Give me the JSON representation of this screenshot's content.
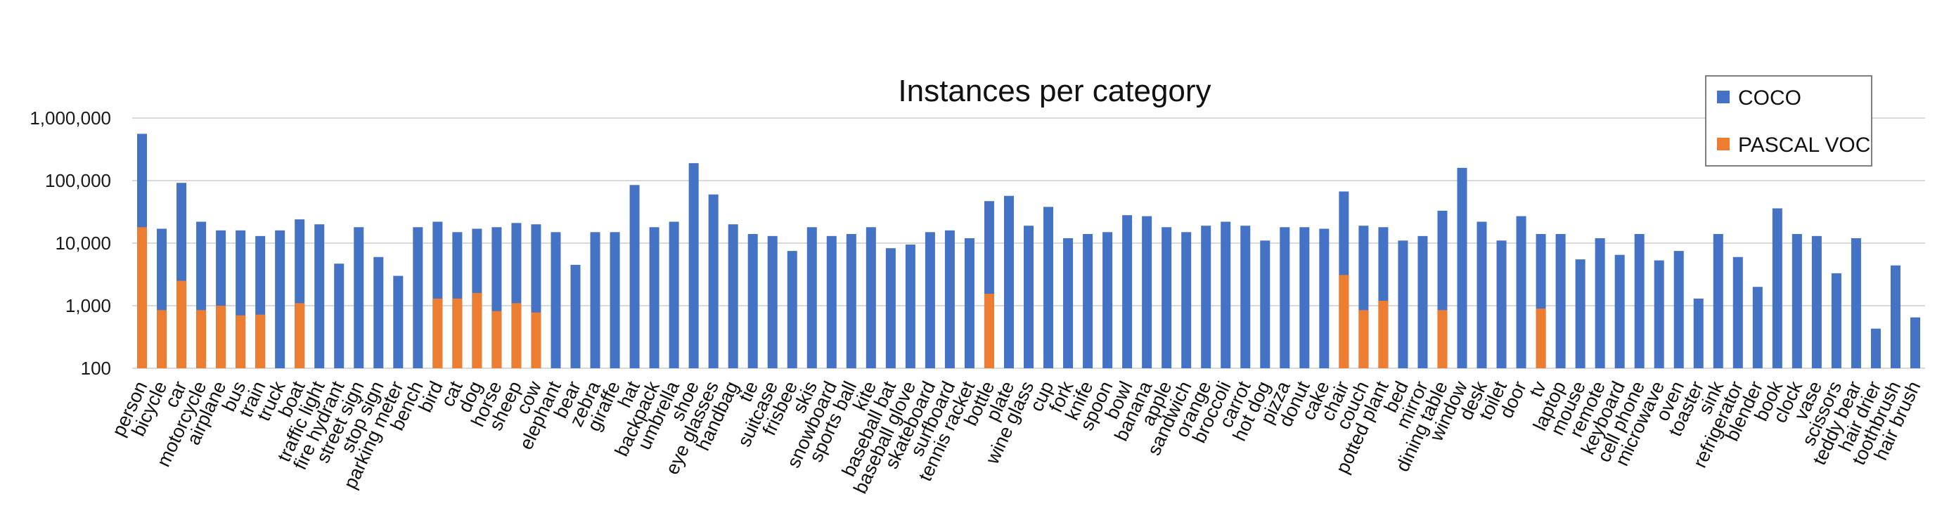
{
  "chart_data": {
    "type": "bar",
    "title": "Instances per category",
    "xlabel": "",
    "ylabel": "",
    "yscale": "log",
    "ylim": [
      100,
      1000000
    ],
    "yticks": [
      100,
      1000,
      10000,
      100000,
      1000000
    ],
    "ytick_labels": [
      "100",
      "1,000",
      "10,000",
      "100,000",
      "1,000,000"
    ],
    "grid": true,
    "legend_position": "top-right",
    "categories": [
      "person",
      "bicycle",
      "car",
      "motorcycle",
      "airplane",
      "bus",
      "train",
      "truck",
      "boat",
      "traffic light",
      "fire hydrant",
      "street sign",
      "stop sign",
      "parking meter",
      "bench",
      "bird",
      "cat",
      "dog",
      "horse",
      "sheep",
      "cow",
      "elephant",
      "bear",
      "zebra",
      "giraffe",
      "hat",
      "backpack",
      "umbrella",
      "shoe",
      "eye glasses",
      "handbag",
      "tie",
      "suitcase",
      "frisbee",
      "skis",
      "snowboard",
      "sports ball",
      "kite",
      "baseball bat",
      "baseball glove",
      "skateboard",
      "surfboard",
      "tennis racket",
      "bottle",
      "plate",
      "wine glass",
      "cup",
      "fork",
      "knife",
      "spoon",
      "bowl",
      "banana",
      "apple",
      "sandwich",
      "orange",
      "broccoli",
      "carrot",
      "hot dog",
      "pizza",
      "donut",
      "cake",
      "chair",
      "couch",
      "potted plant",
      "bed",
      "mirror",
      "dining table",
      "window",
      "desk",
      "toilet",
      "door",
      "tv",
      "laptop",
      "mouse",
      "remote",
      "keyboard",
      "cell phone",
      "microwave",
      "oven",
      "toaster",
      "sink",
      "refrigerator",
      "blender",
      "book",
      "clock",
      "vase",
      "scissors",
      "teddy bear",
      "hair drier",
      "toothbrush",
      "hair brush"
    ],
    "series": [
      {
        "name": "COCO",
        "color": "#4472C4",
        "values": [
          560000,
          17000,
          92000,
          22000,
          16000,
          16000,
          13000,
          16000,
          24000,
          20000,
          4700,
          18000,
          6000,
          3000,
          18000,
          22000,
          15000,
          17000,
          18000,
          21000,
          20000,
          15000,
          4500,
          15000,
          15000,
          85000,
          18000,
          22000,
          190000,
          60000,
          20000,
          14000,
          13000,
          7500,
          18000,
          13000,
          14000,
          18000,
          8300,
          9500,
          15000,
          16000,
          12000,
          47000,
          57000,
          19000,
          38000,
          12000,
          14000,
          15000,
          28000,
          27000,
          18000,
          15000,
          19000,
          22000,
          19000,
          11000,
          18000,
          18000,
          17000,
          67000,
          19000,
          18000,
          11000,
          13000,
          33000,
          160000,
          22000,
          11000,
          27000,
          14000,
          14000,
          5500,
          12000,
          6500,
          14000,
          5300,
          7500,
          1300,
          14000,
          6000,
          2000,
          36000,
          14000,
          13000,
          3300,
          12000,
          430,
          4400,
          650
        ]
      },
      {
        "name": "PASCAL VOC",
        "color": "#ED7D31",
        "values": [
          18000,
          850,
          2500,
          850,
          1000,
          700,
          720,
          null,
          1100,
          null,
          null,
          null,
          null,
          null,
          null,
          1300,
          1300,
          1600,
          820,
          1100,
          780,
          null,
          null,
          null,
          null,
          null,
          null,
          null,
          null,
          null,
          null,
          null,
          null,
          null,
          null,
          null,
          null,
          null,
          null,
          null,
          null,
          null,
          null,
          1550,
          null,
          null,
          null,
          null,
          null,
          null,
          null,
          null,
          null,
          null,
          null,
          null,
          null,
          null,
          null,
          null,
          null,
          3100,
          850,
          1200,
          null,
          null,
          850,
          null,
          null,
          null,
          null,
          900,
          null,
          null,
          null,
          null,
          null,
          null,
          null,
          null,
          null,
          null,
          null,
          null,
          null,
          null,
          null,
          null,
          null,
          null,
          null
        ]
      }
    ]
  }
}
